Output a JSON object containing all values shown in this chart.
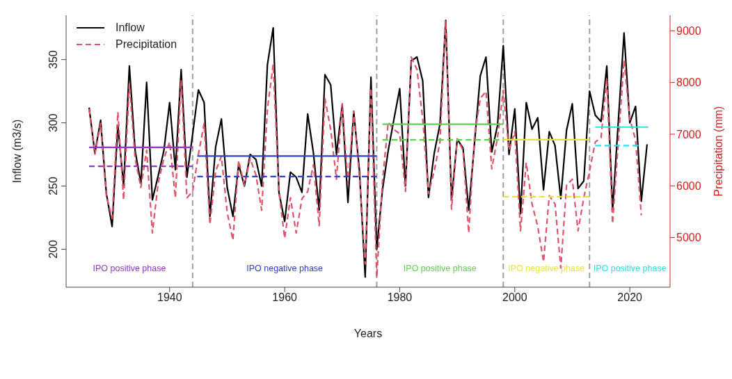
{
  "chart_data": {
    "type": "line",
    "xlabel": "Years",
    "ylabel": "Inflow (m3/s)",
    "y2label": "Precipitation (mm)",
    "x": [
      1926,
      1927,
      1928,
      1929,
      1930,
      1931,
      1932,
      1933,
      1934,
      1935,
      1936,
      1937,
      1938,
      1939,
      1940,
      1941,
      1942,
      1943,
      1944,
      1945,
      1946,
      1947,
      1948,
      1949,
      1950,
      1951,
      1952,
      1953,
      1954,
      1955,
      1956,
      1957,
      1958,
      1959,
      1960,
      1961,
      1962,
      1963,
      1964,
      1965,
      1966,
      1967,
      1968,
      1969,
      1970,
      1971,
      1972,
      1973,
      1974,
      1975,
      1976,
      1977,
      1978,
      1979,
      1980,
      1981,
      1982,
      1983,
      1984,
      1985,
      1986,
      1987,
      1988,
      1989,
      1990,
      1991,
      1992,
      1993,
      1994,
      1995,
      1996,
      1997,
      1998,
      1999,
      2000,
      2001,
      2002,
      2003,
      2004,
      2005,
      2006,
      2007,
      2008,
      2009,
      2010,
      2011,
      2012,
      2013,
      2014,
      2015,
      2016,
      2017,
      2018,
      2019,
      2020,
      2021,
      2022,
      2023
    ],
    "xlim": [
      1922,
      2027
    ],
    "xticks": [
      1940,
      1960,
      1980,
      2000,
      2020
    ],
    "ylim": [
      170,
      385
    ],
    "yticks": [
      200,
      250,
      300,
      350
    ],
    "y2lim": [
      4040,
      9300
    ],
    "y2ticks": [
      5000,
      6000,
      7000,
      8000,
      9000
    ],
    "legend": "top left",
    "grid": false,
    "marker": "none",
    "series": [
      {
        "name": "Inflow",
        "color": "#000000",
        "axis": "y",
        "line_style": "solid",
        "values": [
          312,
          276,
          302,
          244,
          218,
          298,
          250,
          345,
          278,
          252,
          332,
          239,
          258,
          278,
          316,
          263,
          342,
          257,
          291,
          326,
          316,
          226,
          281,
          303,
          249,
          226,
          267,
          250,
          275,
          271,
          250,
          346,
          375,
          245,
          222,
          261,
          257,
          245,
          307,
          276,
          231,
          338,
          330,
          275,
          314,
          237,
          309,
          262,
          178,
          336,
          200,
          247,
          278,
          303,
          327,
          250,
          349,
          352,
          333,
          241,
          276,
          299,
          381,
          239,
          287,
          280,
          231,
          284,
          337,
          352,
          277,
          298,
          361,
          275,
          311,
          228,
          316,
          295,
          304,
          247,
          293,
          282,
          240,
          294,
          315,
          248,
          254,
          325,
          306,
          301,
          345,
          231,
          301,
          371,
          300,
          313,
          238,
          283
        ]
      },
      {
        "name": "Precipitation",
        "color": "#df536b",
        "axis": "y2",
        "line_style": "dashed",
        "values": [
          7490,
          6610,
          7210,
          5810,
          5370,
          7430,
          5730,
          7970,
          6530,
          5970,
          6690,
          5090,
          6050,
          6530,
          6850,
          5770,
          8050,
          5770,
          5890,
          6610,
          7210,
          5250,
          6290,
          6570,
          5490,
          4950,
          6490,
          6010,
          6530,
          6210,
          5530,
          7490,
          8350,
          5890,
          4990,
          5770,
          5090,
          5750,
          5890,
          6410,
          5230,
          7690,
          7090,
          6130,
          7590,
          6050,
          7450,
          6170,
          4490,
          7890,
          4230,
          6090,
          7230,
          7090,
          7010,
          5890,
          8490,
          8250,
          7290,
          5850,
          6290,
          6850,
          9200,
          5550,
          6910,
          6690,
          5090,
          6970,
          7690,
          7830,
          6330,
          6930,
          7850,
          6690,
          7050,
          5130,
          6450,
          5650,
          5210,
          4530,
          5810,
          5650,
          4410,
          6010,
          6130,
          5130,
          5770,
          6290,
          6850,
          6930,
          8090,
          5270,
          6850,
          8430,
          7290,
          6890,
          5430,
          null
        ]
      },
      {
        "color": "#9932cc",
        "axis": "y",
        "line_style": "solid",
        "x": [
          1926,
          1944
        ],
        "values": [
          280.6,
          280.6
        ]
      },
      {
        "color": "#9932cc",
        "axis": "y2",
        "line_style": "dashed",
        "x": [
          1926,
          1944
        ],
        "values": [
          6380,
          6380
        ]
      },
      {
        "color": "#3040c0",
        "axis": "y",
        "line_style": "solid",
        "x": [
          1944.8,
          1976
        ],
        "values": [
          273.7,
          273.7
        ]
      },
      {
        "color": "#3040c0",
        "axis": "y2",
        "line_style": "dashed",
        "x": [
          1944.8,
          1976
        ],
        "values": [
          6180,
          6180
        ]
      },
      {
        "color": "#61d04f",
        "axis": "y",
        "line_style": "solid",
        "x": [
          1977,
          1998
        ],
        "values": [
          298.9,
          298.9
        ]
      },
      {
        "color": "#61d04f",
        "axis": "y2",
        "line_style": "dashed",
        "x": [
          1977,
          1997.3
        ],
        "values": [
          6890,
          6890
        ]
      },
      {
        "color": "#e8e23a",
        "axis": "y",
        "line_style": "solid",
        "x": [
          1998,
          2013
        ],
        "values": [
          286.6,
          286.6
        ]
      },
      {
        "color": "#e8e23a",
        "axis": "y2",
        "line_style": "dashed",
        "x": [
          1998,
          2013
        ],
        "values": [
          5790,
          5790
        ]
      },
      {
        "color": "#28e2e5",
        "axis": "y",
        "line_style": "solid",
        "x": [
          2014,
          2023.2
        ],
        "values": [
          296.6,
          296.6
        ]
      },
      {
        "color": "#28e2e5",
        "axis": "y2",
        "line_style": "dashed",
        "x": [
          2014,
          2021.5
        ],
        "values": [
          6780,
          6780
        ]
      }
    ],
    "ref_lines": [
      {
        "axis": "x",
        "value": 1944,
        "color": "#a0a0a0",
        "line_style": "dashed"
      },
      {
        "axis": "x",
        "value": 1976,
        "color": "#a0a0a0",
        "line_style": "dashed"
      },
      {
        "axis": "x",
        "value": 1998,
        "color": "#a0a0a0",
        "line_style": "dashed"
      },
      {
        "axis": "x",
        "value": 2013,
        "color": "#a0a0a0",
        "line_style": "dashed"
      }
    ],
    "annotations": [
      "IPO positive phase",
      "IPO negative phase",
      "IPO positive phase",
      "IPO negative phase",
      "IPO positive phase"
    ]
  }
}
